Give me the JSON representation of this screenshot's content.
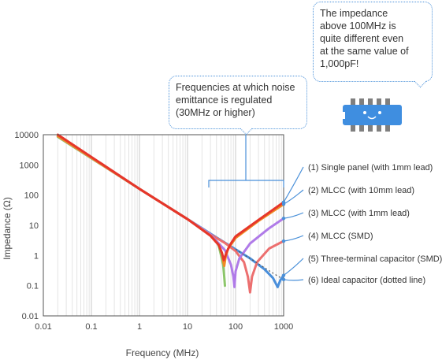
{
  "callouts": {
    "impedance_note": [
      "The impedance",
      "above 100MHz is",
      "quite different even",
      "at the same value of",
      "1,000pF!"
    ],
    "regulation_note": [
      "Frequencies at which noise",
      "emittance is regulated",
      "(30MHz or higher)"
    ]
  },
  "colors": {
    "single_panel": "#e6362a",
    "mlcc_10mm": "#f08a24",
    "mlcc_1mm": "#b07be8",
    "mlcc_smd": "#ec6f6f",
    "three_terminal": "#4a8fdb",
    "ideal": "#8cc66a",
    "accent": "#4a90d9"
  },
  "chip_icon": "capacitor-chip-smiley-icon",
  "chart_data": {
    "type": "line",
    "xscale": "log",
    "yscale": "log",
    "xlim": [
      0.01,
      1000
    ],
    "ylim": [
      0.01,
      10000
    ],
    "xticks": [
      "0.01",
      "0.1",
      "1",
      "10",
      "100",
      "1000"
    ],
    "yticks": [
      "0.01",
      "0.1",
      "1",
      "10",
      "100",
      "1000",
      "10000"
    ],
    "xlabel": "Frequency (MHz)",
    "ylabel": "Impedance (Ω)",
    "grid": "vertical",
    "series": [
      {
        "name": "(1) Single panel (with 1mm lead)",
        "color": "#e6362a",
        "dotted": false,
        "points": [
          [
            0.02,
            10000
          ],
          [
            1,
            160
          ],
          [
            10,
            16
          ],
          [
            30,
            4.5
          ],
          [
            45,
            2.2
          ],
          [
            52,
            1.2
          ],
          [
            57,
            0.7
          ],
          [
            60,
            0.9
          ],
          [
            65,
            1.3
          ],
          [
            80,
            2.5
          ],
          [
            100,
            4.3
          ],
          [
            300,
            15
          ],
          [
            1000,
            58
          ]
        ]
      },
      {
        "name": "(2) MLCC (with 10mm lead)",
        "color": "#f08a24",
        "dotted": false,
        "points": [
          [
            0.02,
            9000
          ],
          [
            1,
            160
          ],
          [
            10,
            16
          ],
          [
            30,
            4.6
          ],
          [
            45,
            2.2
          ],
          [
            52,
            1.2
          ],
          [
            56,
            0.6
          ],
          [
            58,
            0.45
          ],
          [
            62,
            0.9
          ],
          [
            70,
            1.7
          ],
          [
            100,
            3.8
          ],
          [
            300,
            14
          ],
          [
            1000,
            50
          ]
        ]
      },
      {
        "name": "(3) MLCC (with 1mm lead)",
        "color": "#b07be8",
        "dotted": false,
        "points": [
          [
            0.02,
            9000
          ],
          [
            1,
            160
          ],
          [
            10,
            16
          ],
          [
            30,
            5
          ],
          [
            60,
            1.5
          ],
          [
            80,
            0.5
          ],
          [
            90,
            0.2
          ],
          [
            95,
            0.09
          ],
          [
            100,
            0.3
          ],
          [
            120,
            0.8
          ],
          [
            200,
            2.5
          ],
          [
            500,
            8
          ],
          [
            1000,
            17
          ]
        ]
      },
      {
        "name": "(4) MLCC (SMD)",
        "color": "#ec6f6f",
        "dotted": false,
        "points": [
          [
            0.02,
            9000
          ],
          [
            1,
            160
          ],
          [
            10,
            16
          ],
          [
            30,
            5
          ],
          [
            60,
            2.6
          ],
          [
            100,
            1.4
          ],
          [
            150,
            0.6
          ],
          [
            180,
            0.2
          ],
          [
            200,
            0.06
          ],
          [
            220,
            0.2
          ],
          [
            280,
            0.6
          ],
          [
            500,
            1.7
          ],
          [
            1000,
            3
          ]
        ]
      },
      {
        "name": "(5) Three-terminal capacitor (SMD)",
        "color": "#4a8fdb",
        "dotted": false,
        "points": [
          [
            0.02,
            9000
          ],
          [
            1,
            160
          ],
          [
            10,
            16
          ],
          [
            30,
            5.3
          ],
          [
            100,
            1.6
          ],
          [
            200,
            0.8
          ],
          [
            400,
            0.35
          ],
          [
            600,
            0.18
          ],
          [
            750,
            0.09
          ],
          [
            850,
            0.15
          ],
          [
            1000,
            0.22
          ]
        ]
      },
      {
        "name": "(6) Ideal capacitor (dotted line)",
        "color": "#8cc66a",
        "dotted": true,
        "points": [
          [
            0.02,
            8500
          ],
          [
            1,
            160
          ],
          [
            10,
            16
          ],
          [
            30,
            5.3
          ],
          [
            40,
            3
          ],
          [
            45,
            2
          ],
          [
            50,
            1
          ],
          [
            55,
            0.5
          ],
          [
            58,
            0.2
          ],
          [
            60,
            0.1
          ]
        ]
      }
    ],
    "ideal_dotted_extension": [
      [
        100,
        1.6
      ],
      [
        300,
        0.53
      ],
      [
        600,
        0.26
      ],
      [
        1000,
        0.16
      ]
    ]
  }
}
